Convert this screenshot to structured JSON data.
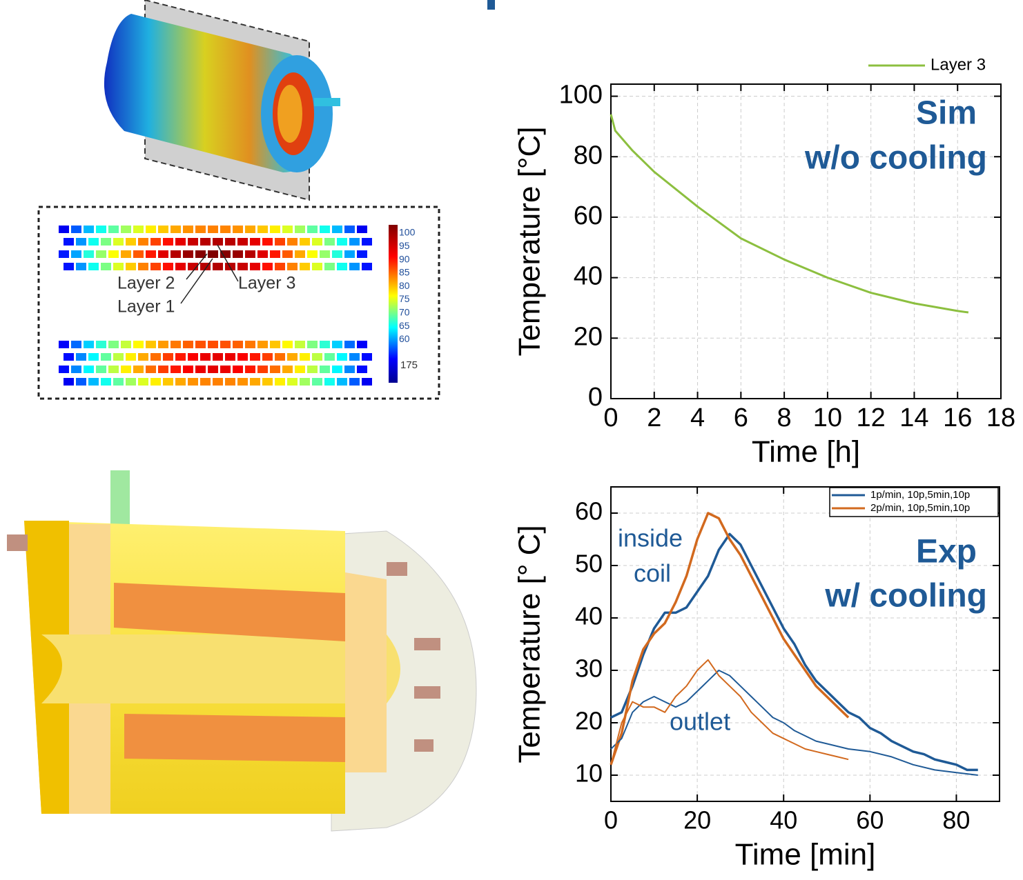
{
  "figure_labels": {
    "layers": [
      "Layer 2",
      "Layer 3",
      "Layer 1"
    ],
    "colorbar_ticks": [
      100,
      95,
      90,
      85,
      80,
      75,
      70,
      65,
      60
    ],
    "colorbar_extra_tick": 175
  },
  "chart_data": [
    {
      "type": "line",
      "x_label": "Time [h]",
      "y_label": "Temperature [°C]",
      "annotations": [
        "Sim",
        "w/o cooling"
      ],
      "xlim": [
        0,
        18
      ],
      "xticks": [
        0,
        2,
        4,
        6,
        8,
        10,
        12,
        14,
        16,
        18
      ],
      "ylim": [
        0,
        104
      ],
      "yticks": [
        0,
        20,
        40,
        60,
        80,
        100
      ],
      "grid": true,
      "legend": "top-right",
      "series": [
        {
          "name": "Layer 3",
          "color": "#8cbf3f",
          "x": [
            0,
            0.2,
            1,
            2,
            4,
            6,
            8,
            10,
            12,
            14,
            16,
            16.5
          ],
          "values": [
            94,
            88.6,
            82,
            75,
            63.5,
            53,
            46,
            40,
            35,
            31.5,
            29,
            28.5
          ]
        }
      ]
    },
    {
      "type": "line",
      "x_label": "Time [min]",
      "y_label": "Temperature [°  C]",
      "annotations": [
        "inside",
        "coil",
        "outlet",
        "Exp",
        "w/ cooling"
      ],
      "xlim": [
        0,
        90
      ],
      "xticks": [
        0,
        20,
        40,
        60,
        80
      ],
      "ylim": [
        5,
        65
      ],
      "yticks": [
        10,
        20,
        30,
        40,
        50,
        60
      ],
      "grid": true,
      "legend": "top-right",
      "series": [
        {
          "name": "1p/min, 10p,5min,10p",
          "color": "#1f5a96",
          "width": 3.5,
          "x": [
            0,
            2.5,
            5,
            7.5,
            10,
            12.5,
            15,
            17.5,
            20,
            22.5,
            25,
            27.5,
            30,
            32.5,
            35,
            37.5,
            40,
            42.5,
            45,
            47.5,
            50,
            52.5,
            55,
            57.5,
            60,
            62.5,
            65,
            67.5,
            70,
            72.5,
            75,
            77.5,
            80,
            82.5,
            85
          ],
          "values": [
            21,
            22,
            27,
            33,
            38,
            41,
            41,
            42,
            45,
            48,
            53,
            56,
            54,
            50,
            46,
            42,
            38,
            35,
            31,
            28,
            26,
            24,
            22,
            21,
            19,
            18,
            16.5,
            15.5,
            14.5,
            14,
            13,
            12.5,
            12,
            11,
            11
          ]
        },
        {
          "name": "2p/min, 10p,5min,10p",
          "color": "#d2691e",
          "width": 3.5,
          "x": [
            0,
            2.5,
            5,
            7.5,
            10,
            12.5,
            15,
            17.5,
            20,
            22.5,
            25,
            27.5,
            30,
            32.5,
            35,
            37.5,
            40,
            42.5,
            45,
            47.5,
            50,
            52.5,
            55
          ],
          "values": [
            12,
            18,
            28,
            34,
            37,
            39,
            43,
            48,
            55,
            60,
            59,
            55,
            52,
            48,
            44,
            40,
            36,
            33,
            30,
            27,
            25,
            23,
            21
          ]
        },
        {
          "color": "#1f5a96",
          "width": 2,
          "x": [
            0,
            2.5,
            5,
            7.5,
            10,
            12.5,
            15,
            17.5,
            20,
            22.5,
            25,
            27.5,
            30,
            32.5,
            35,
            37.5,
            40,
            42.5,
            45,
            47.5,
            50,
            55,
            60,
            65,
            70,
            75,
            80,
            85
          ],
          "values": [
            15,
            17,
            22,
            24,
            25,
            24,
            23,
            24,
            26,
            28,
            30,
            29,
            27,
            25,
            23,
            21,
            20,
            18.5,
            17.5,
            16.5,
            16,
            15,
            14.5,
            13.5,
            12,
            11,
            10.5,
            10
          ]
        },
        {
          "color": "#d2691e",
          "width": 2,
          "x": [
            0,
            2.5,
            5,
            7.5,
            10,
            12.5,
            15,
            17.5,
            20,
            22.5,
            25,
            27.5,
            30,
            32.5,
            35,
            37.5,
            40,
            42.5,
            45,
            47.5,
            50,
            52.5,
            55
          ],
          "values": [
            12,
            20,
            24,
            23,
            23,
            22,
            25,
            27,
            30,
            32,
            29,
            27,
            25,
            22,
            20,
            18,
            17,
            16,
            15,
            14.5,
            14,
            13.5,
            13
          ]
        }
      ]
    }
  ]
}
